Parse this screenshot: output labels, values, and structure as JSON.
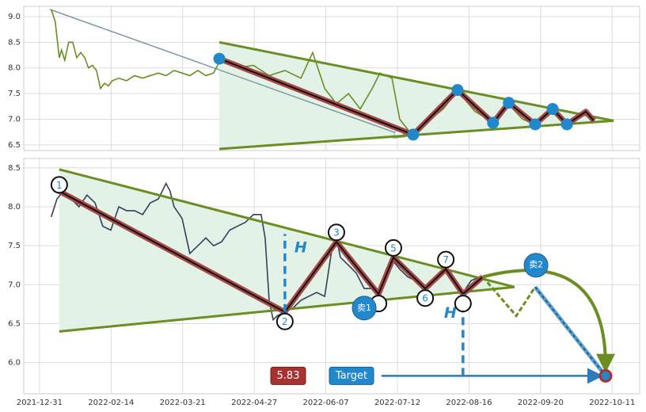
{
  "chart_data": [
    {
      "type": "line",
      "xlim": [
        -5.5,
        209.6
      ],
      "ylim": [
        6.39,
        9.2
      ],
      "yticks": [
        6.5,
        {
          "value": 7,
          "label": "7.0"
        },
        7.5,
        {
          "value": 8,
          "label": "8.0"
        },
        8.5,
        {
          "value": 9,
          "label": "9.0"
        }
      ],
      "grid": true,
      "series": [
        {
          "color": "#6b8e23",
          "x": [
            4.1,
            5.5,
            6.9,
            7.7,
            8.8,
            10.2,
            11.6,
            13.0,
            14.4,
            15.8,
            17.1,
            18.5,
            19.9,
            21.3,
            22.7,
            24.1,
            25.4,
            27.7,
            30.4,
            33.2,
            36.0,
            38.7,
            41.5,
            44.2,
            47.0,
            49.8,
            52.5,
            55.3,
            58.1,
            60.8,
            63.1,
            69.1,
            74.7,
            80.2,
            85.7,
            91.3,
            95.4,
            99.6,
            103.7,
            107.9,
            112.0,
            116.2,
            118.9,
            123.1,
            125.8,
            130.0,
            135.5,
            141.0,
            146.0,
            152.1,
            158.2,
            163.7,
            168.7,
            173.1,
            179.2,
            184.2,
            190.8,
            193.6
          ],
          "values": [
            9.14,
            8.9,
            8.2,
            8.35,
            8.15,
            8.5,
            8.5,
            8.2,
            8.3,
            8.2,
            8.0,
            8.05,
            7.95,
            7.6,
            7.7,
            7.65,
            7.75,
            7.8,
            7.75,
            7.85,
            7.8,
            7.85,
            7.9,
            7.85,
            7.95,
            7.9,
            7.85,
            7.95,
            7.85,
            7.9,
            8.15,
            8.0,
            8.05,
            7.85,
            7.95,
            7.8,
            8.3,
            7.6,
            7.3,
            7.5,
            7.2,
            7.6,
            7.9,
            7.8,
            7.0,
            6.7,
            6.95,
            7.2,
            7.55,
            7.15,
            6.95,
            7.3,
            7.0,
            6.9,
            7.2,
            6.9,
            7.15,
            7.0
          ]
        }
      ],
      "upper_trend": {
        "x": [
          62.8,
          200.5
        ],
        "values": [
          8.5,
          6.97
        ]
      },
      "lower_trend": {
        "x": [
          62.8,
          200.5
        ],
        "values": [
          6.42,
          6.97
        ]
      },
      "zigzag": {
        "x": [
          62.8,
          130.5,
          146.0,
          158.4,
          163.9,
          173.1,
          179.2,
          184.2,
          190.8,
          193.6
        ],
        "values": [
          8.18,
          6.7,
          7.57,
          6.93,
          7.32,
          6.9,
          7.2,
          6.9,
          7.15,
          6.97
        ]
      },
      "arrow": {
        "x": [
          3.6,
          127.2
        ],
        "values": [
          9.14,
          6.68
        ]
      }
    },
    {
      "type": "line",
      "xlim": [
        -5.5,
        209.6
      ],
      "ylim": [
        5.6,
        8.62
      ],
      "yticks": [
        {
          "value": 6,
          "label": "6.0"
        },
        6.5,
        {
          "value": 7,
          "label": "7.0"
        },
        7.5,
        {
          "value": 8,
          "label": "8.0"
        },
        8.5
      ],
      "xticks": [
        {
          "value": 0,
          "label": "2021-12-31"
        },
        {
          "value": 25,
          "label": "2022-02-14"
        },
        {
          "value": 50,
          "label": "2022-03-21"
        },
        {
          "value": 75,
          "label": "2022-04-27"
        },
        {
          "value": 100,
          "label": "2022-06-07"
        },
        {
          "value": 125,
          "label": "2022-07-12"
        },
        {
          "value": 150,
          "label": "2022-08-16"
        },
        {
          "value": 175,
          "label": "2022-09-20"
        },
        {
          "value": 200,
          "label": "2022-10-11"
        }
      ],
      "grid": true,
      "series": [
        {
          "color": "#34405a",
          "x": [
            4.1,
            6.1,
            8.3,
            11.1,
            13.8,
            16.6,
            19.4,
            22.1,
            24.9,
            27.7,
            30.4,
            33.2,
            36.0,
            38.7,
            41.5,
            44.2,
            45.6,
            47.0,
            49.8,
            52.5,
            55.3,
            58.1,
            60.8,
            63.6,
            66.4,
            69.1,
            71.9,
            74.7,
            77.4,
            78.8,
            80.2,
            81.6,
            83.0,
            85.7,
            88.5,
            91.3,
            94.0,
            96.8,
            99.6,
            102.3,
            103.7,
            105.1,
            107.9,
            110.6,
            113.4,
            116.2,
            118.4,
            121.1,
            123.6,
            125.8,
            128.6,
            131.4,
            134.7,
            136.9,
            139.7,
            141.9,
            143.8,
            146.0,
            147.9,
            150.7,
            153.5
          ],
          "values": [
            7.87,
            8.1,
            8.2,
            8.1,
            8.0,
            8.15,
            8.05,
            7.75,
            7.7,
            8.0,
            7.95,
            7.95,
            7.9,
            8.05,
            8.1,
            8.3,
            8.2,
            8.0,
            7.85,
            7.4,
            7.5,
            7.6,
            7.5,
            7.55,
            7.7,
            7.75,
            7.8,
            7.9,
            7.9,
            7.6,
            6.8,
            6.55,
            6.6,
            6.65,
            6.7,
            6.8,
            6.85,
            6.9,
            6.85,
            7.5,
            7.6,
            7.35,
            7.25,
            7.15,
            6.95,
            6.95,
            6.9,
            7.2,
            7.3,
            7.2,
            7.1,
            7.05,
            6.95,
            7.05,
            7.1,
            7.2,
            7.15,
            7.0,
            6.9,
            7.05,
            7.1
          ]
        }
      ],
      "upper_trend": {
        "x": [
          6.9,
          165.9
        ],
        "values": [
          8.48,
          6.97
        ]
      },
      "lower_trend": {
        "x": [
          6.9,
          165.9
        ],
        "values": [
          6.4,
          6.97
        ]
      },
      "zigzag": {
        "x": [
          6.9,
          85.7,
          103.7,
          118.4,
          123.6,
          134.7,
          141.9,
          147.9,
          154.8
        ],
        "values": [
          8.2,
          6.65,
          7.55,
          6.88,
          7.35,
          6.95,
          7.2,
          6.88,
          7.1
        ]
      },
      "pivot_labels": [
        "1",
        "2",
        "3",
        null,
        "5",
        "6",
        "7",
        null,
        null
      ],
      "projection": {
        "x": [
          154.8,
          166.5,
          173.1
        ],
        "values": [
          7.1,
          6.6,
          6.97
        ]
      },
      "drop": {
        "x": [
          173.1,
          197.7
        ],
        "values": [
          6.97,
          5.83
        ]
      },
      "curve": {
        "x": [
          154.8,
          197.7
        ],
        "values": [
          7.1,
          5.95
        ]
      },
      "height_line_1": {
        "x": [
          85.7,
          85.7
        ],
        "values": [
          6.65,
          7.65
        ]
      },
      "height_line_2": {
        "x": [
          147.9,
          147.9
        ],
        "values": [
          5.83,
          6.88
        ]
      },
      "height_label": "H",
      "target": {
        "value": 5.83,
        "label": "5.83",
        "text": "Target",
        "x": 197.7
      },
      "sell_points": {
        "x": [
          113.4,
          173.4
        ],
        "values": [
          6.7,
          7.25
        ]
      },
      "sell_labels": [
        "卖1",
        "卖2"
      ]
    }
  ]
}
